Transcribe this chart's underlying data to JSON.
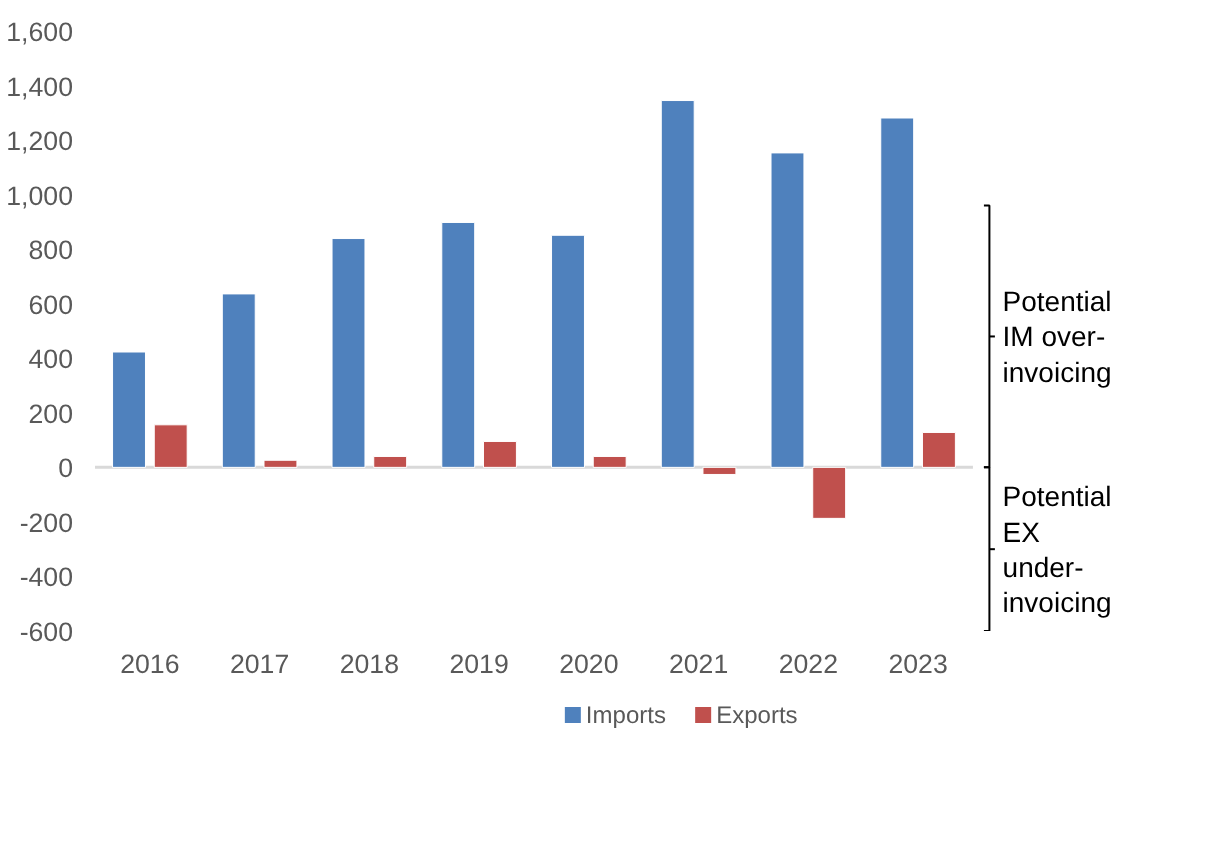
{
  "chart_data": {
    "type": "bar",
    "categories": [
      "2016",
      "2017",
      "2018",
      "2019",
      "2020",
      "2021",
      "2022",
      "2023"
    ],
    "series": [
      {
        "name": "Imports",
        "color": "#4f81bd",
        "values": [
          423,
          636,
          839,
          898,
          851,
          1345,
          1153,
          1281
        ]
      },
      {
        "name": "Exports",
        "color": "#c0504d",
        "values": [
          156,
          26,
          40,
          95,
          40,
          -26,
          -187,
          128
        ]
      }
    ],
    "ylim": [
      -600,
      1600
    ],
    "yticks": [
      {
        "value": -600,
        "label": "-600"
      },
      {
        "value": -400,
        "label": "-400"
      },
      {
        "value": -200,
        "label": "-200"
      },
      0,
      200,
      400,
      600,
      800,
      {
        "value": 1000,
        "label": "1,000"
      },
      {
        "value": 1200,
        "label": "1,200"
      },
      {
        "value": 1400,
        "label": "1,400"
      },
      {
        "value": 1600,
        "label": "1,600"
      }
    ],
    "annotations": [
      "Potential\nIM over-\ninvoicing",
      "Potential\nEX\nunder-\ninvoicing"
    ],
    "legend": "bottom"
  }
}
